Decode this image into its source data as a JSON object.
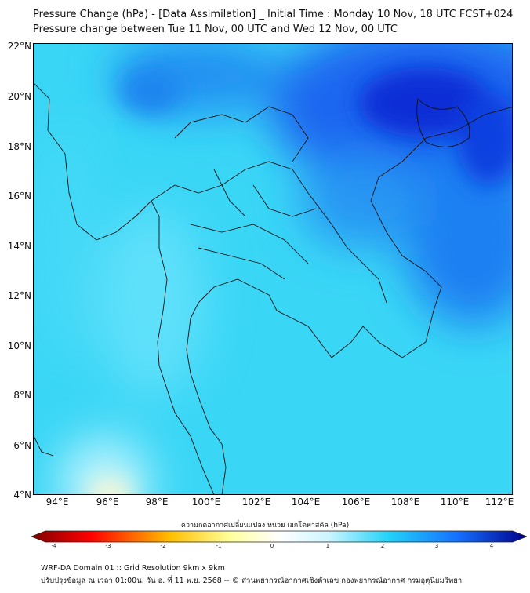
{
  "title": {
    "line1": "Pressure Change (hPa) - [Data Assimilation] _ Initial Time : Monday 10 Nov, 18 UTC FCST+024",
    "line2": "Pressure change between Tue 11 Nov, 00 UTC and Wed 12 Nov, 00 UTC"
  },
  "map": {
    "lat_labels": [
      "22°N",
      "20°N",
      "18°N",
      "16°N",
      "14°N",
      "12°N",
      "10°N",
      "8°N",
      "6°N",
      "4°N"
    ],
    "lon_labels": [
      "94°E",
      "96°E",
      "98°E",
      "100°E",
      "102°E",
      "104°E",
      "106°E",
      "108°E",
      "110°E",
      "112°E"
    ],
    "lat_range": [
      4,
      22
    ],
    "lon_range": [
      93,
      112.3
    ]
  },
  "colorbar": {
    "title": "ความกดอากาศเปลี่ยนแปลง หน่วย เฮกโตพาสคัล (hPa)",
    "ticks": [
      "-4",
      "-3",
      "-2",
      "-1",
      "0",
      "1",
      "2",
      "3",
      "4"
    ],
    "range": [
      -4,
      4
    ],
    "colors": [
      "#7f0000",
      "#ff0000",
      "#ffbf00",
      "#ffff99",
      "#ffffff",
      "#ccf5ff",
      "#22d3f7",
      "#1570ff",
      "#00008b"
    ]
  },
  "footer": {
    "line1": "WRF-DA Domain 01 :: Grid Resolution 9km x 9km",
    "line2": "ปรับปรุงข้อมูล ณ เวลา 01:00น. วัน อ. ที่ 11 พ.ย. 2568 -- © ส่วนพยากรณ์อากาศเชิงตัวเลข กองพยากรณ์อากาศ กรมอุตุนิยมวิทยา"
  }
}
